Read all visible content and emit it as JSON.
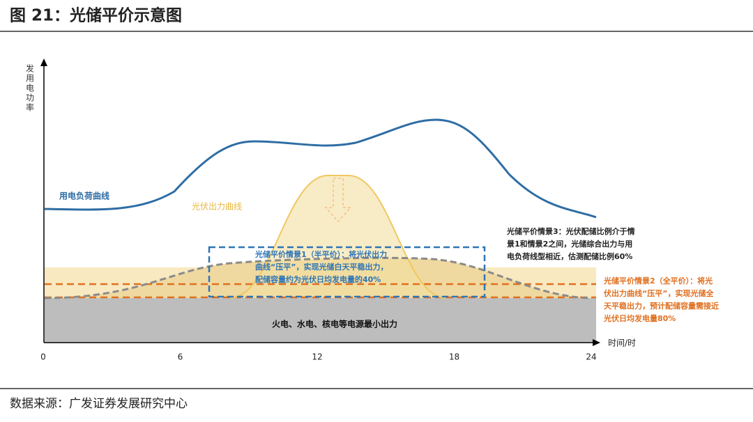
{
  "header": {
    "title": "图 21：光储平价示意图"
  },
  "diagram": {
    "y_axis_label": "发用电功率",
    "x_axis_label": "时间/时",
    "x_ticks": [
      0,
      6,
      12,
      18,
      24
    ],
    "load_curve_label": "用电负荷曲线",
    "pv_curve_label": "光伏出力曲线",
    "base_label": "火电、水电、核电等电源最小出力",
    "scenario1": [
      "光储平价情景1（半平价）：将光伏出力",
      "曲线“压平”，实现光储白天平稳出力，",
      "配储容量约为光伏日均发电量的40%"
    ],
    "scenario2": [
      "光储平价情景2（全平价）：将光",
      "伏出力曲线“压平”，实现光储全",
      "天平稳出力，预计配储容量需接近",
      "光伏日均发电量80%"
    ],
    "scenario3": [
      "光储平价情景3：光伏配储比例介于情",
      "景1和情景2之间，光储综合出力与用",
      "电负荷线型相近，估测配储比例60%"
    ]
  },
  "footer": {
    "source": "数据来源：广发证券发展研究中心"
  }
}
